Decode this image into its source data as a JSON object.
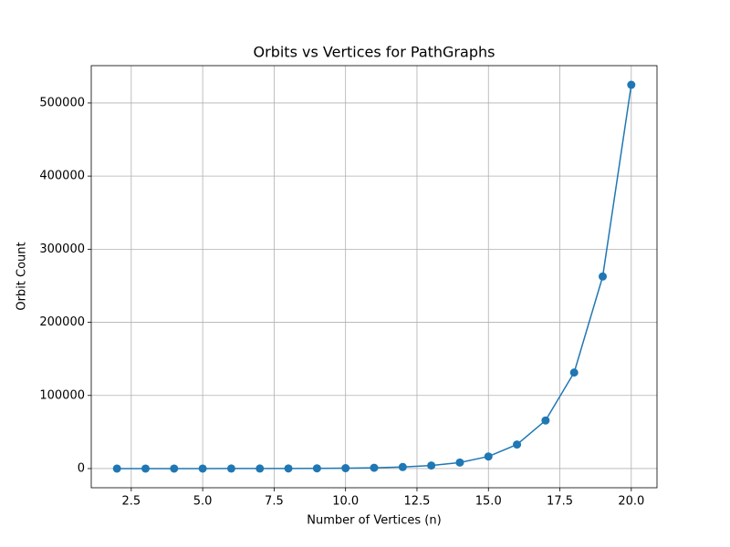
{
  "chart_data": {
    "type": "line",
    "title": "Orbits vs Vertices for PathGraphs",
    "xlabel": "Number of Vertices (n)",
    "ylabel": "Orbit Count",
    "x": [
      2,
      3,
      4,
      5,
      6,
      7,
      8,
      9,
      10,
      11,
      12,
      13,
      14,
      15,
      16,
      17,
      18,
      19,
      20
    ],
    "series": [
      {
        "name": "Orbit Count",
        "color": "#1f77b4",
        "values": [
          3,
          6,
          10,
          20,
          36,
          72,
          136,
          272,
          528,
          1056,
          2080,
          4160,
          8256,
          16512,
          32896,
          65792,
          131328,
          262656,
          524800
        ]
      }
    ],
    "xlim": [
      1.1,
      20.9
    ],
    "xticks": [
      {
        "value": 2.5,
        "label": "2.5"
      },
      {
        "value": 5,
        "label": "5.0"
      },
      {
        "value": 7.5,
        "label": "7.5"
      },
      {
        "value": 10,
        "label": "10.0"
      },
      {
        "value": 12.5,
        "label": "12.5"
      },
      {
        "value": 15,
        "label": "15.0"
      },
      {
        "value": 17.5,
        "label": "17.5"
      },
      {
        "value": 20,
        "label": "20.0"
      }
    ],
    "ylim": [
      -26237,
      551040
    ],
    "yticks": [
      0,
      100000,
      200000,
      300000,
      400000,
      500000
    ],
    "grid": true
  }
}
